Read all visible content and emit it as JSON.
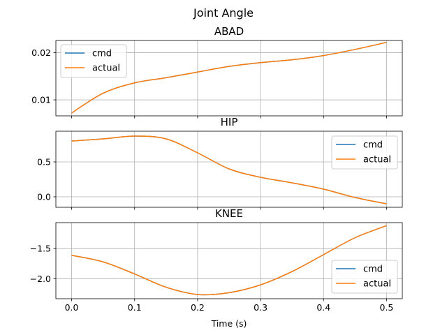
{
  "suptitle": "Joint Angle",
  "xlabel": "Time (s)",
  "colors": {
    "cmd": "#1f77b4",
    "actual": "#ff7f0e",
    "grid": "#b0b0b0"
  },
  "chart_data": [
    {
      "type": "line",
      "title": "ABAD",
      "xlabel": "",
      "ylabel": "",
      "xlim": [
        -0.025,
        0.525
      ],
      "ylim": [
        0.0066,
        0.0226
      ],
      "xticks": [
        0.0,
        0.1,
        0.2,
        0.3,
        0.4,
        0.5
      ],
      "yticks": [
        0.01,
        0.02
      ],
      "ytick_labels": [
        "0.01",
        "0.02"
      ],
      "grid": true,
      "legend": "upper left",
      "x": [
        0.0,
        0.05,
        0.1,
        0.15,
        0.2,
        0.25,
        0.3,
        0.35,
        0.4,
        0.45,
        0.5
      ],
      "series": [
        {
          "name": "cmd",
          "color": "#1f77b4",
          "values": [
            0.0072,
            0.0114,
            0.0136,
            0.0147,
            0.0159,
            0.0171,
            0.0179,
            0.0185,
            0.0194,
            0.0207,
            0.0222
          ]
        },
        {
          "name": "actual",
          "color": "#ff7f0e",
          "values": [
            0.0072,
            0.0114,
            0.0136,
            0.0147,
            0.0159,
            0.0171,
            0.0179,
            0.0185,
            0.0194,
            0.0207,
            0.0222
          ]
        }
      ]
    },
    {
      "type": "line",
      "title": "HIP",
      "xlabel": "",
      "ylabel": "",
      "xlim": [
        -0.025,
        0.525
      ],
      "ylim": [
        -0.15,
        0.94
      ],
      "xticks": [
        0.0,
        0.1,
        0.2,
        0.3,
        0.4,
        0.5
      ],
      "yticks": [
        0.0,
        0.5
      ],
      "ytick_labels": [
        "0.0",
        "0.5"
      ],
      "grid": true,
      "legend": "upper right",
      "x": [
        0.0,
        0.05,
        0.1,
        0.15,
        0.2,
        0.25,
        0.3,
        0.35,
        0.4,
        0.45,
        0.5
      ],
      "series": [
        {
          "name": "cmd",
          "color": "#1f77b4",
          "values": [
            0.8,
            0.83,
            0.87,
            0.83,
            0.63,
            0.4,
            0.28,
            0.2,
            0.11,
            -0.01,
            -0.1
          ]
        },
        {
          "name": "actual",
          "color": "#ff7f0e",
          "values": [
            0.8,
            0.83,
            0.87,
            0.83,
            0.63,
            0.4,
            0.28,
            0.2,
            0.11,
            -0.01,
            -0.1
          ]
        }
      ]
    },
    {
      "type": "line",
      "title": "KNEE",
      "xlabel": "Time (s)",
      "ylabel": "",
      "xlim": [
        -0.025,
        0.525
      ],
      "ylim": [
        -2.33,
        -1.07
      ],
      "xticks": [
        0.0,
        0.1,
        0.2,
        0.3,
        0.4,
        0.5
      ],
      "xtick_labels": [
        "0.0",
        "0.1",
        "0.2",
        "0.3",
        "0.4",
        "0.5"
      ],
      "yticks": [
        -2.0,
        -1.5
      ],
      "ytick_labels": [
        "−2.0",
        "−1.5"
      ],
      "grid": true,
      "legend": "lower right",
      "x": [
        0.0,
        0.05,
        0.1,
        0.15,
        0.2,
        0.25,
        0.3,
        0.35,
        0.4,
        0.45,
        0.5
      ],
      "series": [
        {
          "name": "cmd",
          "color": "#1f77b4",
          "values": [
            -1.61,
            -1.72,
            -1.92,
            -2.14,
            -2.26,
            -2.23,
            -2.1,
            -1.88,
            -1.6,
            -1.32,
            -1.12
          ]
        },
        {
          "name": "actual",
          "color": "#ff7f0e",
          "values": [
            -1.61,
            -1.72,
            -1.92,
            -2.14,
            -2.26,
            -2.23,
            -2.1,
            -1.88,
            -1.6,
            -1.32,
            -1.12
          ]
        }
      ]
    }
  ]
}
